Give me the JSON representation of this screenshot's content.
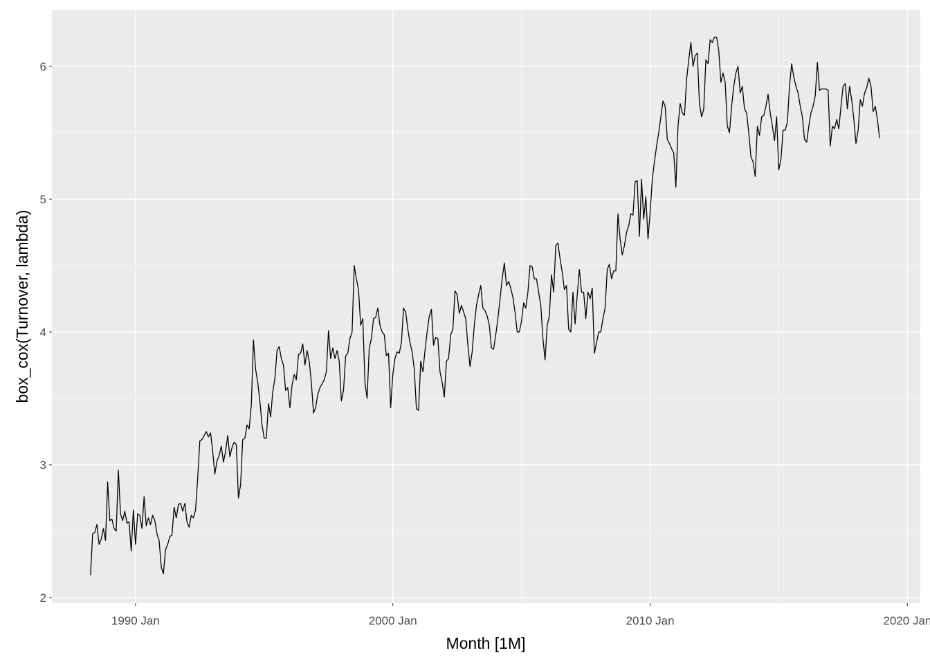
{
  "chart_data": {
    "type": "line",
    "x_label": "Month [1M]",
    "y_label": "box_cox(Turnover, lambda)",
    "x": [
      "1988 Apr",
      "1988 May",
      "1988 Jun",
      "1988 Jul",
      "1988 Aug",
      "1988 Sep",
      "1988 Oct",
      "1988 Nov",
      "1988 Dec",
      "1989 Jan",
      "1989 Feb",
      "1989 Mar",
      "1989 Apr",
      "1989 May",
      "1989 Jun",
      "1989 Jul",
      "1989 Aug",
      "1989 Sep",
      "1989 Oct",
      "1989 Nov",
      "1989 Dec",
      "1990 Jan",
      "1990 Feb",
      "1990 Mar",
      "1990 Apr",
      "1990 May",
      "1990 Jun",
      "1990 Jul",
      "1990 Aug",
      "1990 Sep",
      "1990 Oct",
      "1990 Nov",
      "1990 Dec",
      "1991 Jan",
      "1991 Feb",
      "1991 Mar",
      "1991 Apr",
      "1991 May",
      "1991 Jun",
      "1991 Jul",
      "1991 Aug",
      "1991 Sep",
      "1991 Oct",
      "1991 Nov",
      "1991 Dec",
      "1992 Jan",
      "1992 Feb",
      "1992 Mar",
      "1992 Apr",
      "1992 May",
      "1992 Jun",
      "1992 Jul",
      "1992 Aug",
      "1992 Sep",
      "1992 Oct",
      "1992 Nov",
      "1992 Dec",
      "1993 Jan",
      "1993 Feb",
      "1993 Mar",
      "1993 Apr",
      "1993 May",
      "1993 Jun",
      "1993 Jul",
      "1993 Aug",
      "1993 Sep",
      "1993 Oct",
      "1993 Nov",
      "1993 Dec",
      "1994 Jan",
      "1994 Feb",
      "1994 Mar",
      "1994 Apr",
      "1994 May",
      "1994 Jun",
      "1994 Jul",
      "1994 Aug",
      "1994 Sep",
      "1994 Oct",
      "1994 Nov",
      "1994 Dec",
      "1995 Jan",
      "1995 Feb",
      "1995 Mar",
      "1995 Apr",
      "1995 May",
      "1995 Jun",
      "1995 Jul",
      "1995 Aug",
      "1995 Sep",
      "1995 Oct",
      "1995 Nov",
      "1995 Dec",
      "1996 Jan",
      "1996 Feb",
      "1996 Mar",
      "1996 Apr",
      "1996 May",
      "1996 Jun",
      "1996 Jul",
      "1996 Aug",
      "1996 Sep",
      "1996 Oct",
      "1996 Nov",
      "1996 Dec",
      "1997 Jan",
      "1997 Feb",
      "1997 Mar",
      "1997 Apr",
      "1997 May",
      "1997 Jun",
      "1997 Jul",
      "1997 Aug",
      "1997 Sep",
      "1997 Oct",
      "1997 Nov",
      "1997 Dec",
      "1998 Jan",
      "1998 Feb",
      "1998 Mar",
      "1998 Apr",
      "1998 May",
      "1998 Jun",
      "1998 Jul",
      "1998 Aug",
      "1998 Sep",
      "1998 Oct",
      "1998 Nov",
      "1998 Dec",
      "1999 Jan",
      "1999 Feb",
      "1999 Mar",
      "1999 Apr",
      "1999 May",
      "1999 Jun",
      "1999 Jul",
      "1999 Aug",
      "1999 Sep",
      "1999 Oct",
      "1999 Nov",
      "1999 Dec",
      "2000 Jan",
      "2000 Feb",
      "2000 Mar",
      "2000 Apr",
      "2000 May",
      "2000 Jun",
      "2000 Jul",
      "2000 Aug",
      "2000 Sep",
      "2000 Oct",
      "2000 Nov",
      "2000 Dec",
      "2001 Jan",
      "2001 Feb",
      "2001 Mar",
      "2001 Apr",
      "2001 May",
      "2001 Jun",
      "2001 Jul",
      "2001 Aug",
      "2001 Sep",
      "2001 Oct",
      "2001 Nov",
      "2001 Dec",
      "2002 Jan",
      "2002 Feb",
      "2002 Mar",
      "2002 Apr",
      "2002 May",
      "2002 Jun",
      "2002 Jul",
      "2002 Aug",
      "2002 Sep",
      "2002 Oct",
      "2002 Nov",
      "2002 Dec",
      "2003 Jan",
      "2003 Feb",
      "2003 Mar",
      "2003 Apr",
      "2003 May",
      "2003 Jun",
      "2003 Jul",
      "2003 Aug",
      "2003 Sep",
      "2003 Oct",
      "2003 Nov",
      "2003 Dec",
      "2004 Jan",
      "2004 Feb",
      "2004 Mar",
      "2004 Apr",
      "2004 May",
      "2004 Jun",
      "2004 Jul",
      "2004 Aug",
      "2004 Sep",
      "2004 Oct",
      "2004 Nov",
      "2004 Dec",
      "2005 Jan",
      "2005 Feb",
      "2005 Mar",
      "2005 Apr",
      "2005 May",
      "2005 Jun",
      "2005 Jul",
      "2005 Aug",
      "2005 Sep",
      "2005 Oct",
      "2005 Nov",
      "2005 Dec",
      "2006 Jan",
      "2006 Feb",
      "2006 Mar",
      "2006 Apr",
      "2006 May",
      "2006 Jun",
      "2006 Jul",
      "2006 Aug",
      "2006 Sep",
      "2006 Oct",
      "2006 Nov",
      "2006 Dec",
      "2007 Jan",
      "2007 Feb",
      "2007 Mar",
      "2007 Apr",
      "2007 May",
      "2007 Jun",
      "2007 Jul",
      "2007 Aug",
      "2007 Sep",
      "2007 Oct",
      "2007 Nov",
      "2007 Dec",
      "2008 Jan",
      "2008 Feb",
      "2008 Mar",
      "2008 Apr",
      "2008 May",
      "2008 Jun",
      "2008 Jul",
      "2008 Aug",
      "2008 Sep",
      "2008 Oct",
      "2008 Nov",
      "2008 Dec",
      "2009 Jan",
      "2009 Feb",
      "2009 Mar",
      "2009 Apr",
      "2009 May",
      "2009 Jun",
      "2009 Jul",
      "2009 Aug",
      "2009 Sep",
      "2009 Oct",
      "2009 Nov",
      "2009 Dec",
      "2010 Jan",
      "2010 Feb",
      "2010 Mar",
      "2010 Apr",
      "2010 May",
      "2010 Jun",
      "2010 Jul",
      "2010 Aug",
      "2010 Sep",
      "2010 Oct",
      "2010 Nov",
      "2010 Dec",
      "2011 Jan",
      "2011 Feb",
      "2011 Mar",
      "2011 Apr",
      "2011 May",
      "2011 Jun",
      "2011 Jul",
      "2011 Aug",
      "2011 Sep",
      "2011 Oct",
      "2011 Nov",
      "2011 Dec",
      "2012 Jan",
      "2012 Feb",
      "2012 Mar",
      "2012 Apr",
      "2012 May",
      "2012 Jun",
      "2012 Jul",
      "2012 Aug",
      "2012 Sep",
      "2012 Oct",
      "2012 Nov",
      "2012 Dec",
      "2013 Jan",
      "2013 Feb",
      "2013 Mar",
      "2013 Apr",
      "2013 May",
      "2013 Jun",
      "2013 Jul",
      "2013 Aug",
      "2013 Sep",
      "2013 Oct",
      "2013 Nov",
      "2013 Dec",
      "2014 Jan",
      "2014 Feb",
      "2014 Mar",
      "2014 Apr",
      "2014 May",
      "2014 Jun",
      "2014 Jul",
      "2014 Aug",
      "2014 Sep",
      "2014 Oct",
      "2014 Nov",
      "2014 Dec",
      "2015 Jan",
      "2015 Feb",
      "2015 Mar",
      "2015 Apr",
      "2015 May",
      "2015 Jun",
      "2015 Jul",
      "2015 Aug",
      "2015 Sep",
      "2015 Oct",
      "2015 Nov",
      "2015 Dec",
      "2016 Jan",
      "2016 Feb",
      "2016 Mar",
      "2016 Apr",
      "2016 May",
      "2016 Jun",
      "2016 Jul",
      "2016 Aug",
      "2016 Sep",
      "2016 Oct",
      "2016 Nov",
      "2016 Dec",
      "2017 Jan",
      "2017 Feb",
      "2017 Mar",
      "2017 Apr",
      "2017 May",
      "2017 Jun",
      "2017 Jul",
      "2017 Aug",
      "2017 Sep",
      "2017 Oct",
      "2017 Nov",
      "2017 Dec",
      "2018 Jan",
      "2018 Feb",
      "2018 Mar",
      "2018 Apr",
      "2018 May",
      "2018 Jun",
      "2018 Jul",
      "2018 Aug",
      "2018 Sep",
      "2018 Oct",
      "2018 Nov",
      "2018 Dec"
    ],
    "values": [
      2.17,
      2.48,
      2.49,
      2.55,
      2.4,
      2.44,
      2.52,
      2.43,
      2.87,
      2.58,
      2.59,
      2.52,
      2.5,
      2.96,
      2.63,
      2.58,
      2.65,
      2.56,
      2.57,
      2.35,
      2.66,
      2.4,
      2.63,
      2.62,
      2.52,
      2.76,
      2.54,
      2.6,
      2.55,
      2.62,
      2.58,
      2.48,
      2.43,
      2.23,
      2.18,
      2.36,
      2.4,
      2.46,
      2.47,
      2.68,
      2.6,
      2.7,
      2.71,
      2.65,
      2.71,
      2.57,
      2.53,
      2.62,
      2.6,
      2.66,
      2.9,
      3.18,
      3.19,
      3.22,
      3.25,
      3.21,
      3.24,
      3.1,
      2.93,
      3.03,
      3.07,
      3.14,
      3.02,
      3.1,
      3.22,
      3.06,
      3.13,
      3.17,
      3.15,
      2.75,
      2.85,
      3.19,
      3.2,
      3.3,
      3.27,
      3.45,
      3.94,
      3.72,
      3.62,
      3.48,
      3.3,
      3.2,
      3.2,
      3.46,
      3.36,
      3.55,
      3.65,
      3.86,
      3.89,
      3.8,
      3.75,
      3.56,
      3.58,
      3.43,
      3.6,
      3.68,
      3.64,
      3.83,
      3.84,
      3.91,
      3.75,
      3.86,
      3.78,
      3.62,
      3.39,
      3.43,
      3.53,
      3.58,
      3.61,
      3.64,
      3.7,
      4.01,
      3.8,
      3.88,
      3.8,
      3.86,
      3.78,
      3.48,
      3.56,
      3.82,
      3.84,
      3.95,
      4.0,
      4.5,
      4.4,
      4.32,
      4.05,
      4.1,
      3.62,
      3.5,
      3.88,
      3.95,
      4.1,
      4.11,
      4.18,
      4.05,
      4.0,
      3.98,
      3.82,
      3.84,
      3.43,
      3.68,
      3.8,
      3.85,
      3.84,
      3.92,
      4.18,
      4.15,
      4.02,
      3.92,
      3.85,
      3.72,
      3.42,
      3.41,
      3.78,
      3.7,
      3.86,
      4.0,
      4.12,
      4.17,
      3.9,
      3.96,
      3.95,
      3.7,
      3.62,
      3.51,
      3.78,
      3.8,
      3.98,
      4.02,
      4.31,
      4.28,
      4.14,
      4.2,
      4.15,
      4.1,
      3.9,
      3.74,
      3.85,
      4.05,
      4.2,
      4.28,
      4.35,
      4.18,
      4.16,
      4.12,
      4.05,
      3.88,
      3.87,
      3.98,
      4.1,
      4.25,
      4.4,
      4.52,
      4.35,
      4.38,
      4.33,
      4.26,
      4.15,
      4.0,
      4.0,
      4.08,
      4.22,
      4.18,
      4.3,
      4.5,
      4.49,
      4.4,
      4.4,
      4.3,
      4.2,
      3.95,
      3.79,
      4.05,
      4.12,
      4.43,
      4.3,
      4.65,
      4.67,
      4.55,
      4.45,
      4.32,
      4.35,
      4.02,
      4.0,
      4.3,
      4.06,
      4.28,
      4.47,
      4.3,
      4.3,
      4.1,
      4.3,
      4.25,
      4.33,
      3.84,
      3.92,
      4.0,
      4.0,
      4.1,
      4.18,
      4.47,
      4.51,
      4.4,
      4.46,
      4.46,
      4.89,
      4.7,
      4.58,
      4.65,
      4.75,
      4.8,
      4.89,
      4.88,
      5.13,
      5.14,
      4.72,
      5.15,
      4.85,
      5.02,
      4.7,
      4.9,
      5.15,
      5.28,
      5.4,
      5.5,
      5.62,
      5.74,
      5.7,
      5.45,
      5.42,
      5.38,
      5.35,
      5.09,
      5.55,
      5.72,
      5.65,
      5.63,
      5.9,
      6.05,
      6.18,
      6.0,
      6.08,
      6.1,
      5.72,
      5.62,
      5.68,
      6.05,
      6.02,
      6.2,
      6.18,
      6.22,
      6.22,
      6.12,
      5.88,
      5.95,
      5.88,
      5.55,
      5.5,
      5.7,
      5.85,
      5.95,
      6.0,
      5.8,
      5.85,
      5.68,
      5.65,
      5.5,
      5.32,
      5.28,
      5.17,
      5.55,
      5.48,
      5.62,
      5.63,
      5.7,
      5.79,
      5.65,
      5.55,
      5.44,
      5.62,
      5.22,
      5.3,
      5.52,
      5.52,
      5.58,
      5.85,
      6.02,
      5.92,
      5.85,
      5.8,
      5.7,
      5.62,
      5.45,
      5.43,
      5.55,
      5.65,
      5.7,
      5.78,
      6.03,
      5.82,
      5.83,
      5.83,
      5.83,
      5.82,
      5.4,
      5.55,
      5.53,
      5.6,
      5.53,
      5.7,
      5.85,
      5.87,
      5.68,
      5.85,
      5.75,
      5.6,
      5.42,
      5.52,
      5.75,
      5.7,
      5.8,
      5.84,
      5.91,
      5.85,
      5.66,
      5.7,
      5.6,
      5.46
    ],
    "color": "#000000",
    "xlim": [
      "1986 Oct",
      "2020 Jul"
    ],
    "xticks": [
      "1990 Jan",
      "2000 Jan",
      "2010 Jan",
      "2020 Jan"
    ],
    "ylim": [
      1.958,
      6.427
    ],
    "yticks": [
      2,
      3,
      4,
      5,
      6
    ],
    "grid": true
  }
}
